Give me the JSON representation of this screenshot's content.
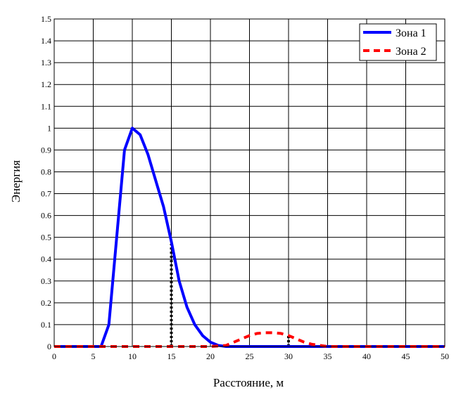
{
  "chart_data": {
    "type": "line",
    "xlabel": "Расстояние, м",
    "ylabel": "Энергия",
    "xlim": [
      0,
      50
    ],
    "ylim": [
      0,
      1.5
    ],
    "xticks": [
      "0",
      "5",
      "10",
      "15",
      "20",
      "25",
      "30",
      "35",
      "40",
      "45",
      "50"
    ],
    "yticks": [
      "0",
      "0.1",
      "0.2",
      "0.3",
      "0.4",
      "0.5",
      "0.6",
      "0.7",
      "0.8",
      "0.9",
      "1",
      "1.1",
      "1.2",
      "1.3",
      "1.4",
      "1.5"
    ],
    "grid": true,
    "legend_position": "top-right",
    "series": [
      {
        "name": "Зона 1",
        "color": "#0000ff",
        "style": "solid",
        "x": [
          0,
          6,
          7,
          8,
          9,
          10,
          11,
          12,
          13,
          14,
          15,
          16,
          17,
          18,
          19,
          20,
          21,
          22,
          25,
          30,
          35,
          40,
          45,
          50
        ],
        "y": [
          0,
          0,
          0.1,
          0.5,
          0.9,
          1.0,
          0.97,
          0.88,
          0.76,
          0.64,
          0.48,
          0.3,
          0.18,
          0.1,
          0.05,
          0.02,
          0.005,
          0,
          0,
          0,
          0,
          0,
          0,
          0
        ]
      },
      {
        "name": "Зона 2",
        "color": "#ff0000",
        "style": "dashed",
        "x": [
          0,
          20,
          22,
          23,
          24,
          25,
          26,
          27,
          28,
          29,
          30,
          31,
          32,
          33,
          34,
          35,
          40,
          50
        ],
        "y": [
          0,
          0,
          0.005,
          0.02,
          0.035,
          0.05,
          0.06,
          0.063,
          0.063,
          0.06,
          0.05,
          0.035,
          0.02,
          0.01,
          0.005,
          0,
          0,
          0
        ]
      }
    ],
    "annotations": [
      {
        "type": "vline",
        "x": 15,
        "y0": 0,
        "y1": 0.47,
        "color": "#000000",
        "style": "dotted"
      },
      {
        "type": "vline",
        "x": 30,
        "y0": 0,
        "y1": 0.05,
        "color": "#000000",
        "style": "dotted"
      }
    ]
  }
}
